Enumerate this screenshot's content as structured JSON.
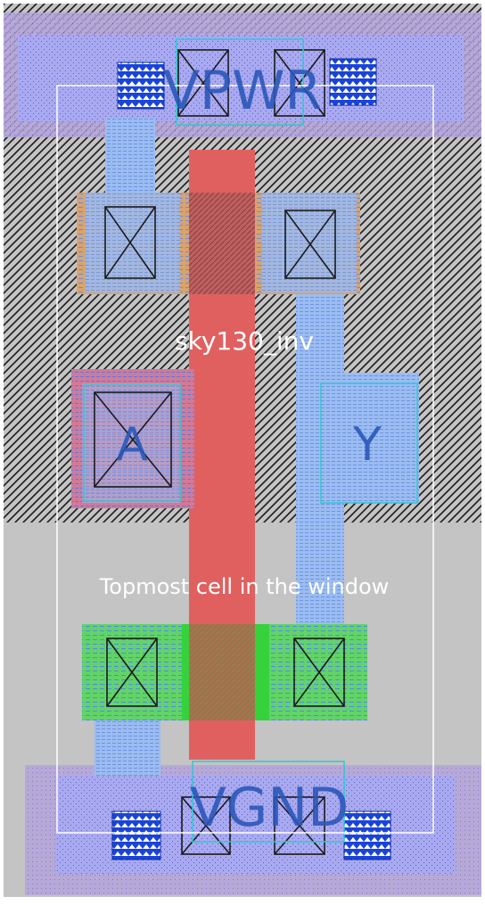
{
  "cell": {
    "name": "sky130_inv",
    "window_label": "Topmost cell in the window"
  },
  "pins": {
    "power": "VPWR",
    "ground": "VGND",
    "input": "A",
    "output": "Y"
  },
  "layers": {
    "nwell": "hatched",
    "poly_color": "#e06060",
    "diff_color": "#36d23c",
    "pdiff_color": "#e0a070",
    "li_color": "#8ab0ee",
    "met1_color": "#9a9ae8",
    "pin_label_color": "#2a56b8",
    "label_color": "#ffffff"
  }
}
